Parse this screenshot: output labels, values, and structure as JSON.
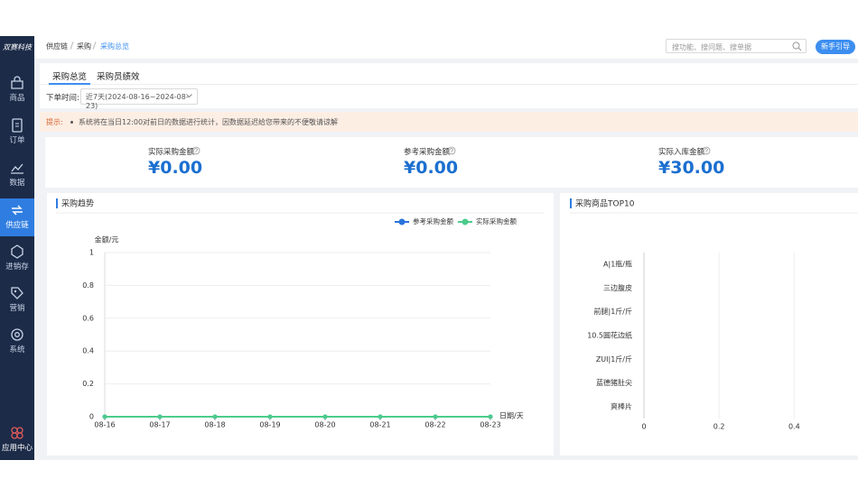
{
  "sidebar": {
    "logo": "双赛科技",
    "items": [
      "商品",
      "订单",
      "数据",
      "供应链",
      "进销存",
      "营销",
      "系统"
    ],
    "footer": "应用中心"
  },
  "header": {
    "breadcrumb": [
      "供应链",
      "采购",
      "采购总览"
    ],
    "search_placeholder": "搜功能、搜问题、搜单据",
    "guide_button": "新手引导"
  },
  "tabs": [
    "采购总览",
    "采购员绩效"
  ],
  "filter": {
    "label": "下单时间:",
    "value": "近7天(2024-08-16~2024-08-23)"
  },
  "notice": {
    "label": "提示:",
    "text": "系统将在当日12:00对前日的数据进行统计，因数据延迟给您带来的不便敬请谅解"
  },
  "stats": [
    {
      "label": "实际采购金额",
      "value": "¥0.00"
    },
    {
      "label": "参考采购金额",
      "value": "¥0.00"
    },
    {
      "label": "实际入库金额",
      "value": "¥30.00"
    }
  ],
  "chart_data": [
    {
      "type": "line",
      "title": "采购趋势",
      "y_label": "金额/元",
      "x_label": "日期/天",
      "categories": [
        "08-16",
        "08-17",
        "08-18",
        "08-19",
        "08-20",
        "08-21",
        "08-22",
        "08-23"
      ],
      "series": [
        {
          "name": "参考采购金额",
          "color": "#2a74dc",
          "values": [
            0,
            0,
            0,
            0,
            0,
            0,
            0,
            0
          ]
        },
        {
          "name": "实际采购金额",
          "color": "#4ccb8c",
          "values": [
            0,
            0,
            0,
            0,
            0,
            0,
            0,
            0
          ]
        }
      ],
      "ylim": [
        0,
        1
      ],
      "yticks": [
        0,
        0.2,
        0.4,
        0.6,
        0.8,
        1
      ],
      "grid": true
    },
    {
      "type": "hbar",
      "title": "采购商品TOP10",
      "color": "#2a74dc",
      "categories": [
        "A|1瓶/瓶",
        "三边腹皮",
        "前腿|1斤/斤",
        "10.5圆花边纸",
        "ZUI|1斤/斤",
        "蓝德猪肚尖",
        "爽棒片"
      ],
      "values": [
        0,
        0,
        0,
        0,
        0,
        0,
        0
      ],
      "xlim": [
        0,
        0.57
      ],
      "xticks": [
        0,
        0.2,
        0.4
      ],
      "grid": true
    }
  ]
}
